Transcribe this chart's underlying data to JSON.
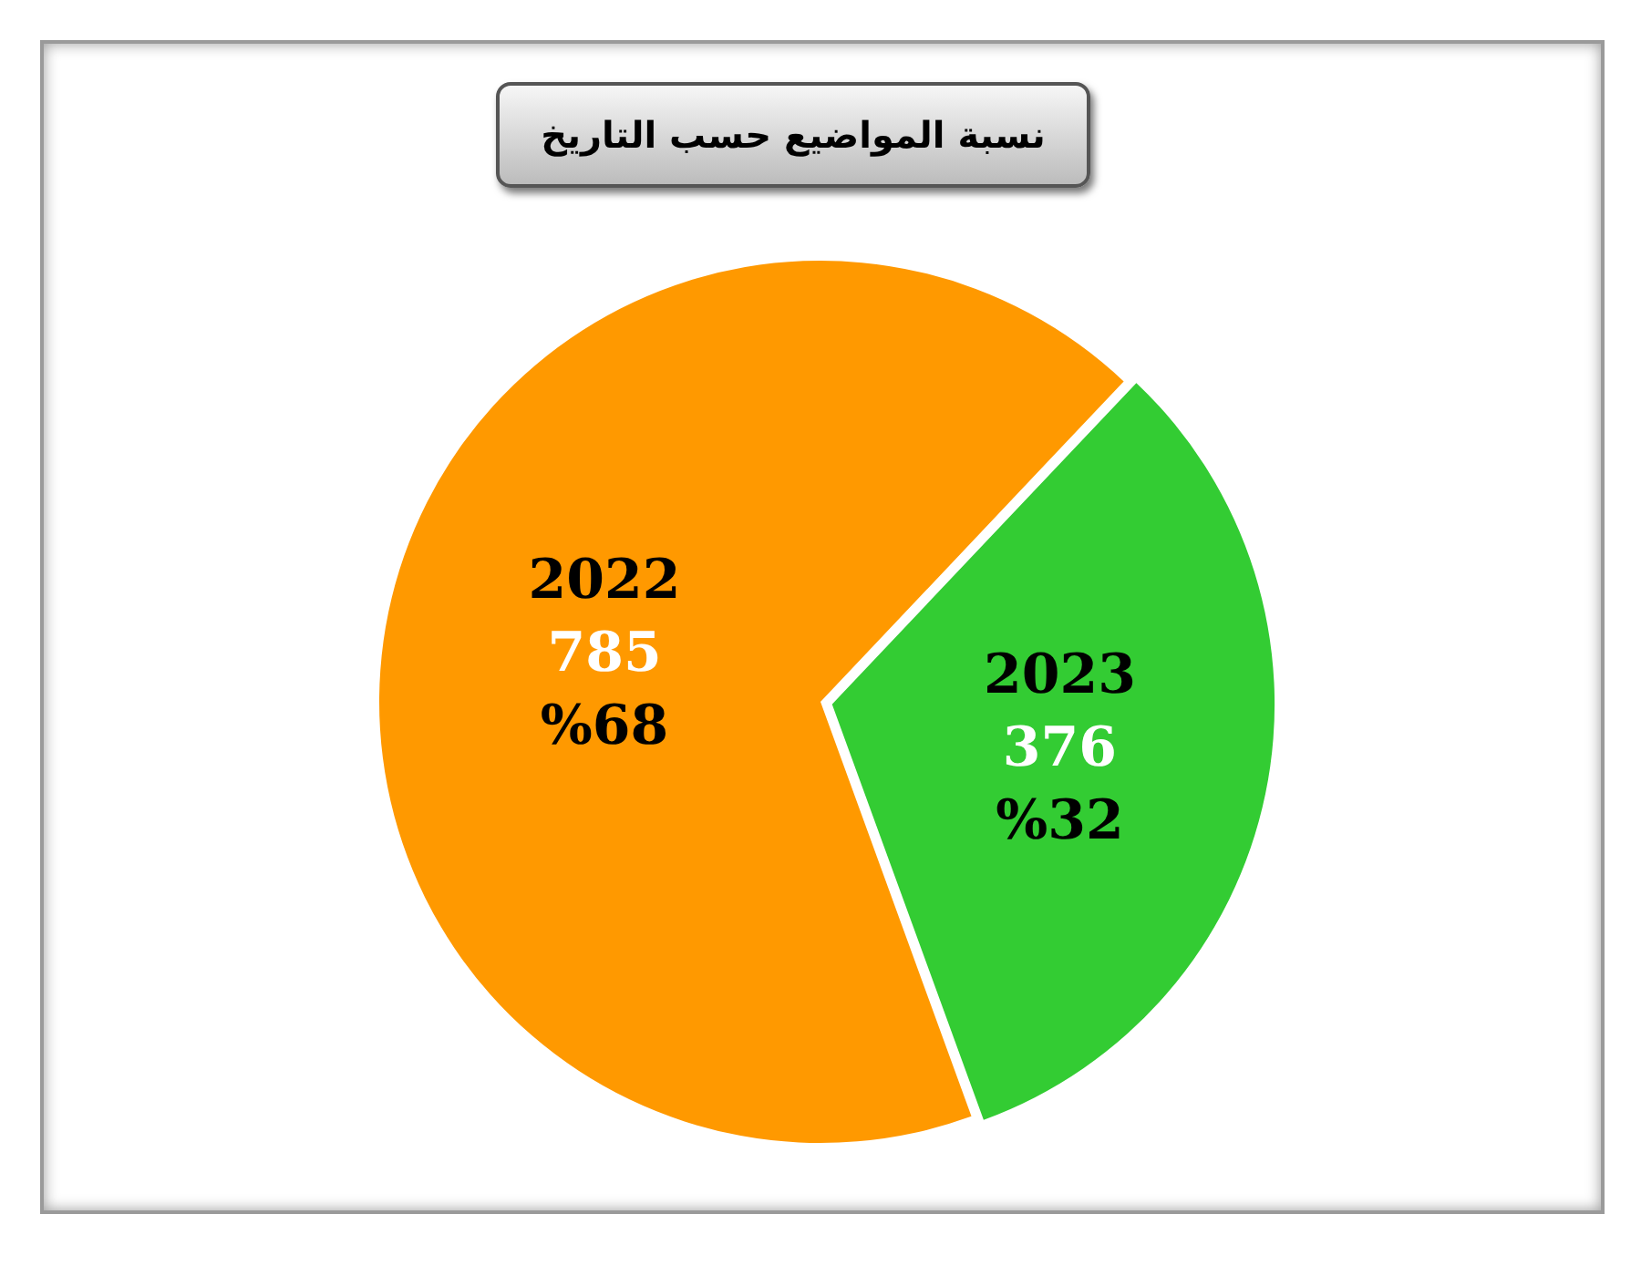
{
  "chart_data": {
    "type": "pie",
    "title": "نسبة المواضيع حسب التاريخ",
    "categories": [
      "2022",
      "2023"
    ],
    "values": [
      785,
      376
    ],
    "colors": [
      "#ff9900",
      "#33cc33"
    ],
    "data_labels": true,
    "annotations": [
      "%68",
      "%32"
    ],
    "legend": false
  }
}
